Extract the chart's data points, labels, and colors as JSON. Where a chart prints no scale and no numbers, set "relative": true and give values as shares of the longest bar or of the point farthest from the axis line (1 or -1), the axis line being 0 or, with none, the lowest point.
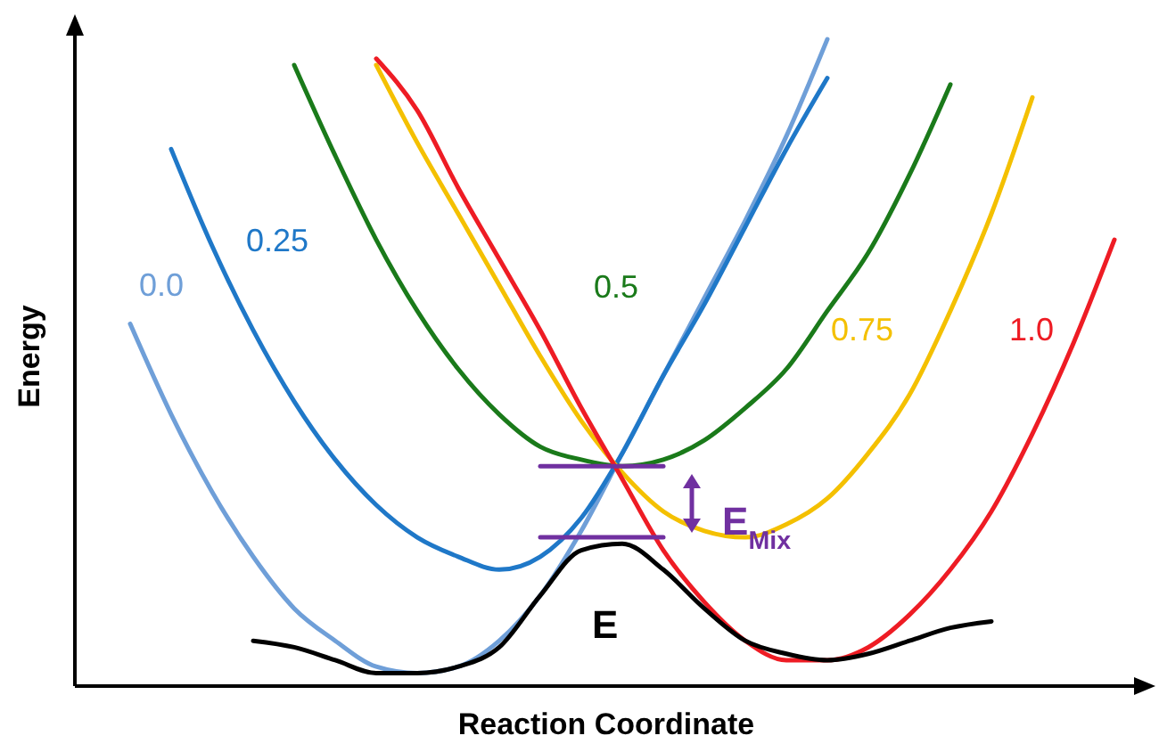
{
  "chart_data": {
    "type": "line",
    "relative": true,
    "xlabel": "Reaction Coordinate",
    "ylabel": "Energy",
    "categories": [
      null,
      null,
      null,
      null,
      null,
      null,
      null,
      null,
      null,
      null,
      null,
      null,
      null,
      null,
      null,
      null,
      null,
      null,
      null,
      null,
      null,
      null,
      null,
      null,
      null,
      null
    ],
    "annotations": [
      "E$_{Mix}$"
    ],
    "series": [
      {
        "name": "0.0",
        "color": "#6f9fd8",
        "values": [
          null,
          0.56,
          0.42,
          0.3,
          0.2,
          0.12,
          0.07,
          0.03,
          0.02,
          0.03,
          0.07,
          0.14,
          0.24,
          0.36,
          0.48,
          0.6,
          0.72,
          0.85,
          1.0,
          null,
          null,
          null,
          null,
          null,
          null,
          null
        ]
      },
      {
        "name": "0.25",
        "color": "#1f78c8",
        "values": [
          null,
          null,
          0.83,
          0.68,
          0.55,
          0.44,
          0.35,
          0.28,
          0.23,
          0.2,
          0.18,
          0.2,
          0.26,
          0.36,
          0.48,
          0.59,
          0.71,
          0.83,
          0.94,
          null,
          null,
          null,
          null,
          null,
          null,
          null
        ]
      },
      {
        "name": "0.5",
        "color": "#1a7a1a",
        "values": [
          null,
          null,
          null,
          null,
          null,
          0.96,
          0.82,
          0.69,
          0.58,
          0.49,
          0.42,
          0.37,
          0.35,
          0.34,
          0.35,
          0.38,
          0.43,
          0.49,
          0.58,
          0.67,
          0.79,
          0.93,
          null,
          null,
          null,
          null
        ]
      },
      {
        "name": "0.75",
        "color": "#f4c000",
        "values": [
          null,
          null,
          null,
          null,
          null,
          null,
          null,
          0.96,
          0.84,
          0.73,
          0.62,
          0.51,
          0.41,
          0.33,
          0.27,
          0.24,
          0.23,
          0.25,
          0.29,
          0.36,
          0.45,
          0.58,
          0.73,
          0.91,
          null,
          null
        ]
      },
      {
        "name": "1.0",
        "color": "#ee1c24",
        "values": [
          null,
          null,
          null,
          null,
          null,
          null,
          null,
          0.97,
          0.89,
          0.77,
          0.66,
          0.55,
          0.43,
          0.32,
          0.21,
          0.13,
          0.07,
          0.04,
          0.04,
          0.06,
          0.11,
          0.18,
          0.27,
          0.39,
          0.53,
          0.69
        ]
      },
      {
        "name": "E",
        "color": "#000000",
        "values": [
          null,
          null,
          null,
          null,
          0.07,
          0.06,
          0.04,
          0.02,
          0.02,
          0.03,
          0.06,
          0.14,
          0.21,
          0.22,
          0.18,
          0.12,
          0.07,
          0.05,
          0.04,
          0.05,
          0.07,
          0.09,
          0.1,
          null,
          null,
          null
        ]
      },
      {
        "color": "#7030a0",
        "values": [
          null,
          null,
          null,
          null,
          null,
          null,
          null,
          null,
          null,
          null,
          null,
          0.34,
          0.34,
          0.34,
          0.34,
          null,
          null,
          null,
          null,
          null,
          null,
          null,
          null,
          null,
          null,
          null
        ]
      },
      {
        "color": "#7030a0",
        "values": [
          null,
          null,
          null,
          null,
          null,
          null,
          null,
          null,
          null,
          null,
          null,
          0.23,
          0.23,
          0.23,
          0.23,
          null,
          null,
          null,
          null,
          null,
          null,
          null,
          null,
          null,
          null,
          null
        ]
      }
    ]
  }
}
